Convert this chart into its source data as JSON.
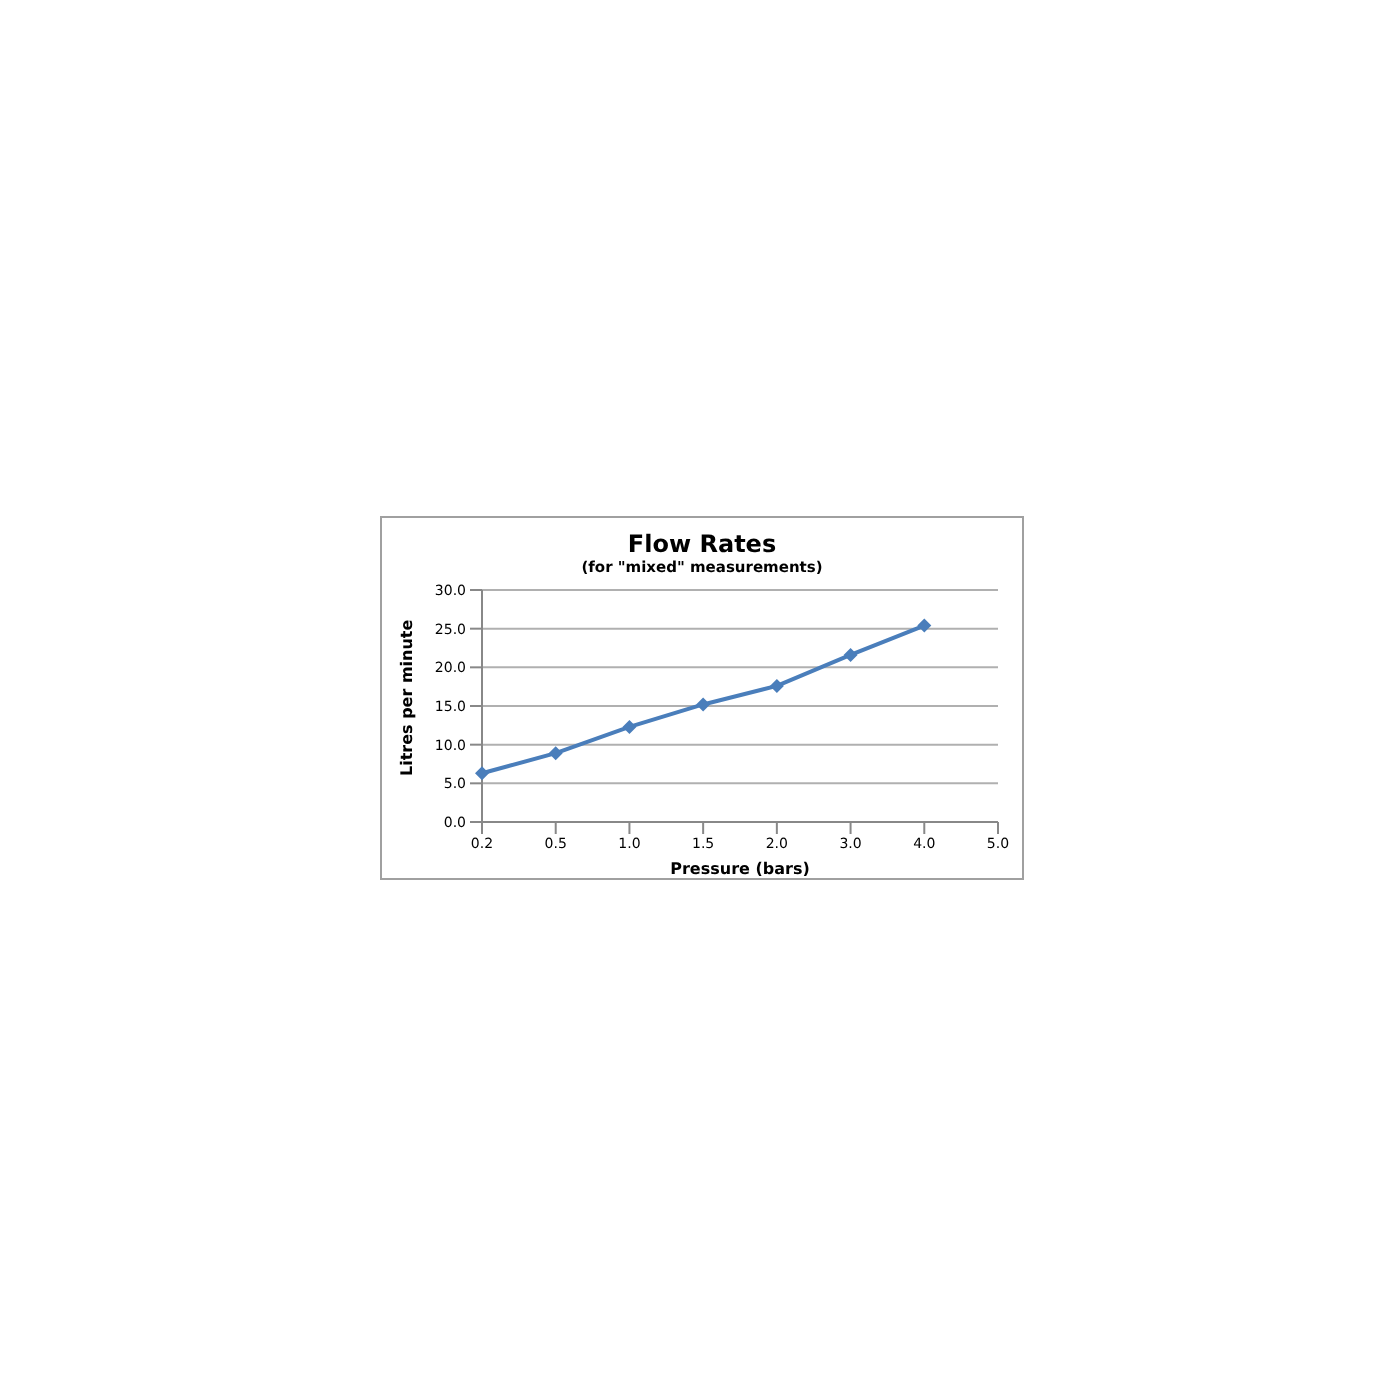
{
  "chart_data": {
    "type": "line",
    "title": "Flow Rates",
    "subtitle": "(for \"mixed\" measurements)",
    "xlabel": "Pressure (bars)",
    "ylabel": "Litres per minute",
    "categories": [
      "0.2",
      "0.5",
      "1.0",
      "1.5",
      "2.0",
      "3.0",
      "4.0",
      "5.0"
    ],
    "series": [
      {
        "color": "#4a7ebb",
        "values": [
          6.3,
          8.9,
          12.3,
          15.2,
          17.6,
          21.6,
          25.4,
          null
        ]
      }
    ],
    "ylim": [
      0,
      30
    ],
    "yticks": [
      {
        "value": 0,
        "label": "0.0"
      },
      {
        "value": 5,
        "label": "5.0"
      },
      {
        "value": 10,
        "label": "10.0"
      },
      {
        "value": 15,
        "label": "15.0"
      },
      {
        "value": 20,
        "label": "20.0"
      },
      {
        "value": 25,
        "label": "25.0"
      },
      {
        "value": 30,
        "label": "30.0"
      }
    ],
    "grid": "y",
    "legend": false,
    "marker": "diamond",
    "line_style": "solid"
  }
}
